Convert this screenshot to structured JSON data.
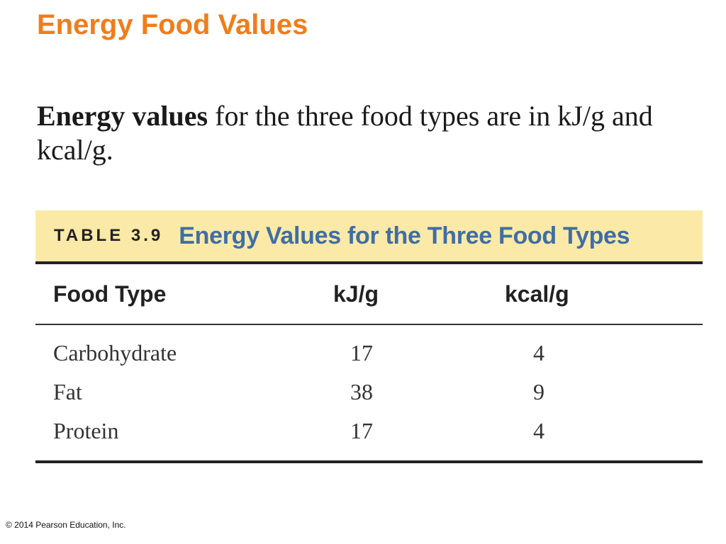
{
  "title": "Energy Food Values",
  "intro": {
    "lead": "Energy values",
    "rest": " for the three food types are in kJ/g and kcal/g."
  },
  "table": {
    "label": "TABLE 3.9",
    "title": "Energy Values for the Three Food Types",
    "headers": [
      "Food Type",
      "kJ/g",
      "kcal/g"
    ],
    "rows": [
      [
        "Carbohydrate",
        "17",
        "4"
      ],
      [
        "Fat",
        "38",
        "9"
      ],
      [
        "Protein",
        "17",
        "4"
      ]
    ]
  },
  "footer": {
    "copyright": "© 2014 Pearson Education, Inc."
  },
  "colors": {
    "title": "#f07d1a",
    "caption_bg": "#fbe9a7",
    "caption_title": "#3f6ea6"
  }
}
